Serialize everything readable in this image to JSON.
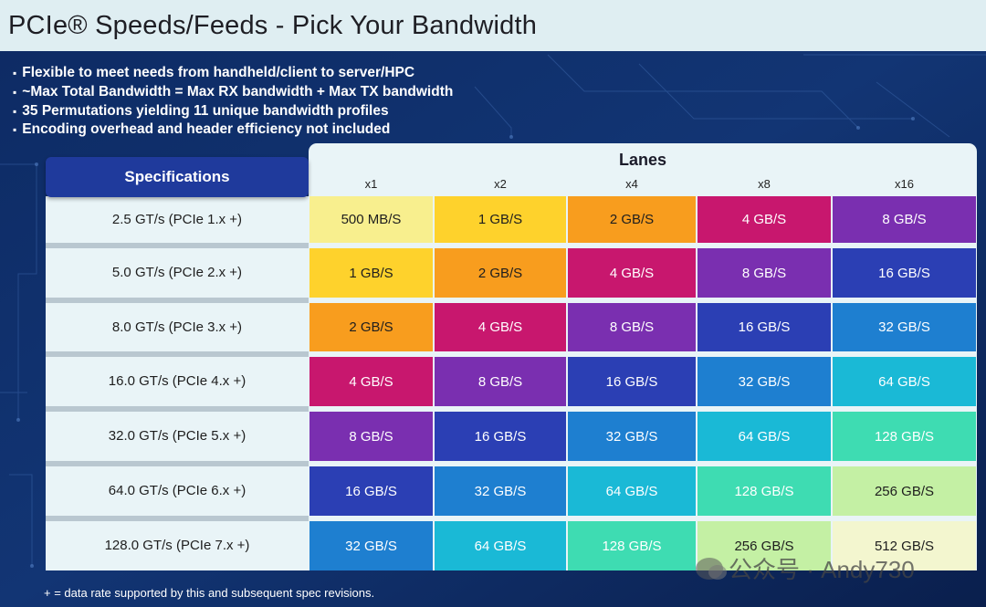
{
  "title": "PCIe® Speeds/Feeds - Pick Your Bandwidth",
  "bullets": [
    "Flexible to meet needs from handheld/client to server/HPC",
    "~Max Total Bandwidth = Max RX bandwidth + Max TX bandwidth",
    "35 Permutations yielding 11 unique bandwidth profiles",
    "Encoding overhead and header efficiency not included"
  ],
  "table": {
    "spec_header": "Specifications",
    "lanes_header": "Lanes",
    "lanes": [
      "x1",
      "x2",
      "x4",
      "x8",
      "x16"
    ],
    "rows": [
      {
        "spec": "2.5 GT/s (PCIe 1.x +)",
        "values": [
          "500 MB/S",
          "1 GB/S",
          "2 GB/S",
          "4 GB/S",
          "8 GB/S"
        ]
      },
      {
        "spec": "5.0 GT/s (PCIe 2.x +)",
        "values": [
          "1 GB/S",
          "2 GB/S",
          "4 GB/S",
          "8 GB/S",
          "16 GB/S"
        ]
      },
      {
        "spec": "8.0 GT/s (PCIe 3.x +)",
        "values": [
          "2 GB/S",
          "4 GB/S",
          "8 GB/S",
          "16 GB/S",
          "32 GB/S"
        ]
      },
      {
        "spec": "16.0 GT/s (PCIe 4.x +)",
        "values": [
          "4 GB/S",
          "8 GB/S",
          "16 GB/S",
          "32 GB/S",
          "64 GB/S"
        ]
      },
      {
        "spec": "32.0 GT/s (PCIe 5.x +)",
        "values": [
          "8 GB/S",
          "16 GB/S",
          "32 GB/S",
          "64 GB/S",
          "128 GB/S"
        ]
      },
      {
        "spec": "64.0 GT/s (PCIe 6.x +)",
        "values": [
          "16 GB/S",
          "32 GB/S",
          "64 GB/S",
          "128 GB/S",
          "256 GB/S"
        ]
      },
      {
        "spec": "128.0 GT/s (PCIe 7.x +)",
        "values": [
          "32 GB/S",
          "64 GB/S",
          "128 GB/S",
          "256 GB/S",
          "512 GB/S"
        ]
      }
    ],
    "bandwidth_colors": {
      "500 MB/S": "#f8ef8e",
      "1 GB/S": "#fed22c",
      "2 GB/S": "#f89d1e",
      "4 GB/S": "#c8176e",
      "8 GB/S": "#7a2fb0",
      "16 GB/S": "#2b3fb4",
      "32 GB/S": "#1e7fd0",
      "64 GB/S": "#1ab9d6",
      "128 GB/S": "#3edcb2",
      "256 GB/S": "#c4f0a4",
      "512 GB/S": "#f3f6cf"
    },
    "dark_text_values": [
      "500 MB/S",
      "1 GB/S",
      "2 GB/S",
      "256 GB/S",
      "512 GB/S"
    ]
  },
  "footnote": "+ = data rate supported by this and subsequent spec revisions.",
  "watermark": "公众号 · Andy730"
}
